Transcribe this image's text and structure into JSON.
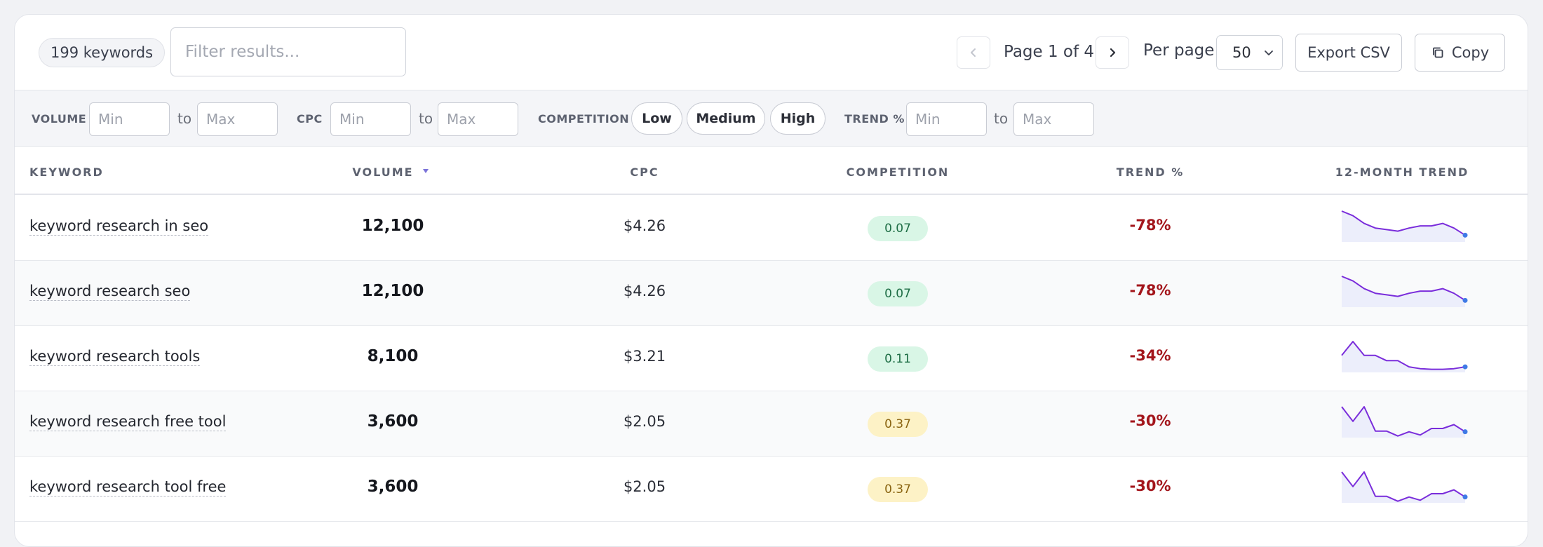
{
  "toolbar": {
    "keyword_count": "199 keywords",
    "filter_placeholder": "Filter results...",
    "page_label": "Page 1 of 4",
    "per_page_label": "Per page",
    "per_page_value": "50",
    "export_label": "Export CSV",
    "copy_label": "Copy"
  },
  "filters": {
    "volume_label": "VOLUME",
    "cpc_label": "CPC",
    "competition_label": "COMPETITION",
    "trend_label": "TREND %",
    "min_placeholder": "Min",
    "max_placeholder": "Max",
    "to_label": "to",
    "chips": [
      "Low",
      "Medium",
      "High"
    ]
  },
  "table": {
    "headers": {
      "keyword": "KEYWORD",
      "volume": "VOLUME",
      "cpc": "CPC",
      "competition": "COMPETITION",
      "trend": "TREND %",
      "monthly": "12-MONTH TREND"
    },
    "sort_column": "volume",
    "sort_direction": "desc",
    "rows": [
      {
        "keyword": "keyword research in seo",
        "volume": "12,100",
        "cpc": "$4.26",
        "competition": "0.07",
        "level": "low",
        "trend": "-78%",
        "monthly": [
          100,
          85,
          60,
          45,
          40,
          35,
          45,
          52,
          52,
          60,
          45,
          22
        ]
      },
      {
        "keyword": "keyword research seo",
        "volume": "12,100",
        "cpc": "$4.26",
        "competition": "0.07",
        "level": "low",
        "trend": "-78%",
        "monthly": [
          100,
          85,
          60,
          45,
          40,
          35,
          45,
          52,
          52,
          60,
          45,
          22
        ]
      },
      {
        "keyword": "keyword research tools",
        "volume": "8,100",
        "cpc": "$3.21",
        "competition": "0.11",
        "level": "low",
        "trend": "-34%",
        "monthly": [
          55,
          100,
          55,
          55,
          38,
          38,
          18,
          12,
          10,
          10,
          12,
          18
        ]
      },
      {
        "keyword": "keyword research free tool",
        "volume": "3,600",
        "cpc": "$2.05",
        "competition": "0.37",
        "level": "mid",
        "trend": "-30%",
        "monthly": [
          95,
          50,
          95,
          20,
          20,
          5,
          18,
          8,
          28,
          28,
          40,
          18
        ]
      },
      {
        "keyword": "keyword research tool free",
        "volume": "3,600",
        "cpc": "$2.05",
        "competition": "0.37",
        "level": "mid",
        "trend": "-30%",
        "monthly": [
          95,
          50,
          95,
          20,
          20,
          5,
          18,
          8,
          28,
          28,
          40,
          18
        ]
      }
    ]
  },
  "colors": {
    "sparkline": "#7a2ddb",
    "sparkline_fill": "#eceefb",
    "sparkline_dot": "#3f7ae6",
    "trend_negative": "#a3151b",
    "competition_low": "#d9f6e6",
    "competition_medium": "#fdf2c6"
  }
}
